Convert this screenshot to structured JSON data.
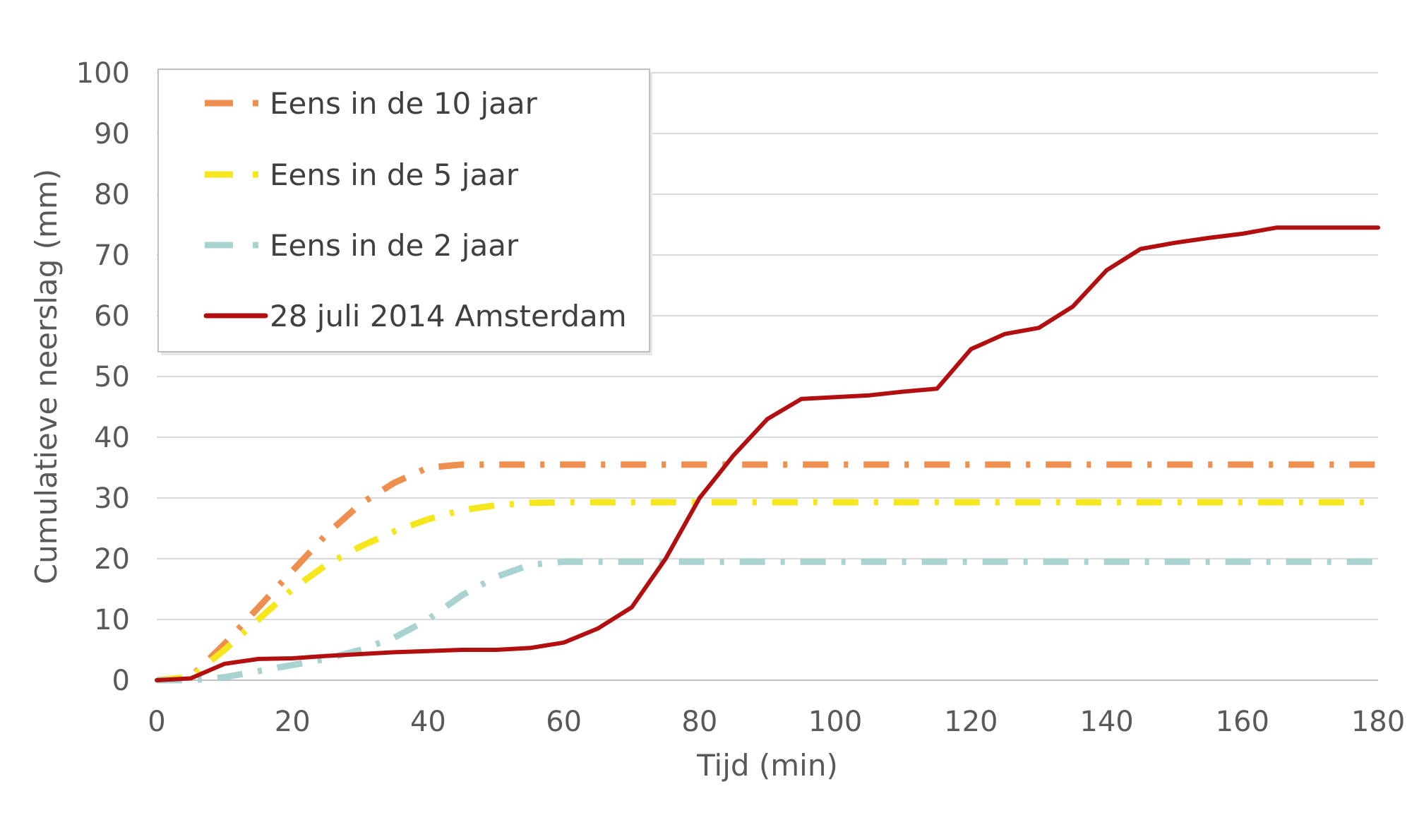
{
  "chart_data": {
    "type": "line",
    "xlabel": "Tijd (min)",
    "ylabel": "Cumulatieve neerslag (mm)",
    "xlim": [
      0,
      180
    ],
    "ylim": [
      0,
      100
    ],
    "x_ticks": [
      "0",
      "20",
      "40",
      "60",
      "80",
      "100",
      "120",
      "140",
      "160",
      "180"
    ],
    "y_ticks": [
      "0",
      "10",
      "20",
      "30",
      "40",
      "50",
      "60",
      "70",
      "80",
      "90",
      "100"
    ],
    "grid": "horizontal",
    "legend_position": "top-left",
    "series": [
      {
        "name": "Eens in de 10 jaar",
        "color": "#EE8E4F",
        "style": "dash-dot",
        "x": [
          0,
          5,
          10,
          15,
          20,
          25,
          30,
          35,
          40,
          45,
          50,
          60,
          70,
          80,
          90,
          100,
          110,
          120,
          130,
          140,
          150,
          160,
          170,
          180
        ],
        "y": [
          0,
          0.5,
          6,
          12,
          18,
          24,
          29,
          32.5,
          35,
          35.5,
          35.5,
          35.5,
          35.5,
          35.5,
          35.5,
          35.5,
          35.5,
          35.5,
          35.5,
          35.5,
          35.5,
          35.5,
          35.5,
          35.5
        ]
      },
      {
        "name": "Eens in de 5 jaar",
        "color": "#F5E61E",
        "style": "dash-dot",
        "x": [
          0,
          5,
          10,
          15,
          20,
          25,
          30,
          35,
          40,
          45,
          50,
          55,
          60,
          70,
          80,
          90,
          100,
          110,
          120,
          130,
          140,
          150,
          160,
          170,
          180
        ],
        "y": [
          0,
          0.5,
          5,
          10,
          15,
          19,
          22,
          24.5,
          26.5,
          28,
          28.8,
          29.2,
          29.3,
          29.3,
          29.3,
          29.3,
          29.3,
          29.3,
          29.3,
          29.3,
          29.3,
          29.3,
          29.3,
          29.3,
          29.3
        ]
      },
      {
        "name": "Eens in de 2 jaar",
        "color": "#A9D3D0",
        "style": "dash-dot",
        "x": [
          0,
          5,
          10,
          15,
          20,
          25,
          30,
          35,
          40,
          45,
          50,
          55,
          60,
          70,
          80,
          90,
          100,
          110,
          120,
          130,
          140,
          150,
          160,
          170,
          180
        ],
        "y": [
          0,
          0,
          0.5,
          1.5,
          2.5,
          3.5,
          5,
          7,
          10,
          14,
          17,
          19,
          19.5,
          19.5,
          19.5,
          19.5,
          19.5,
          19.5,
          19.5,
          19.5,
          19.5,
          19.5,
          19.5,
          19.5,
          19.5
        ]
      },
      {
        "name": "28 juli 2014 Amsterdam",
        "color": "#B21010",
        "style": "solid",
        "x": [
          0,
          5,
          10,
          15,
          20,
          25,
          30,
          35,
          40,
          45,
          50,
          55,
          60,
          65,
          70,
          75,
          80,
          85,
          90,
          95,
          100,
          105,
          110,
          115,
          120,
          125,
          130,
          135,
          140,
          145,
          150,
          155,
          160,
          165,
          170,
          175,
          180
        ],
        "y": [
          0,
          0.3,
          2.7,
          3.5,
          3.6,
          4,
          4.3,
          4.6,
          4.8,
          5,
          5,
          5.3,
          6.2,
          8.5,
          12,
          20,
          30,
          37,
          43,
          46.3,
          46.6,
          46.9,
          47.5,
          48,
          54.5,
          57,
          58,
          61.5,
          67.5,
          71,
          72,
          72.8,
          73.5,
          74.5,
          74.5,
          74.5,
          74.5
        ]
      }
    ]
  }
}
